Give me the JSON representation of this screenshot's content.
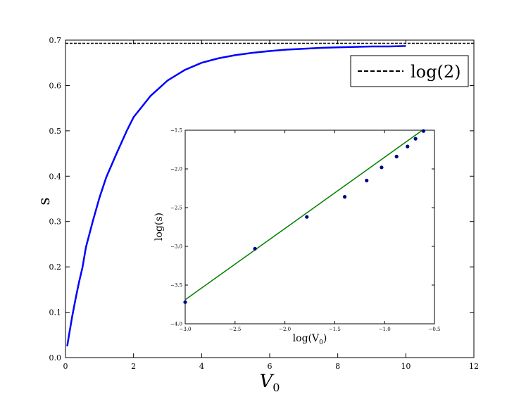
{
  "chart_data": [
    {
      "type": "line",
      "xlabel": "V",
      "xlabel_sub": "0",
      "ylabel": "s",
      "xlim": [
        0,
        12
      ],
      "ylim": [
        0.0,
        0.7
      ],
      "xticks": [
        "0",
        "2",
        "4",
        "6",
        "8",
        "10",
        "12"
      ],
      "yticks": [
        "0.0",
        "0.1",
        "0.2",
        "0.3",
        "0.4",
        "0.5",
        "0.6",
        "0.7"
      ],
      "grid": false,
      "legend_position": "top-right",
      "series": [
        {
          "kind": "curve",
          "color": "#0000ff",
          "x": [
            0.05,
            0.1,
            0.2,
            0.3,
            0.4,
            0.5,
            0.6,
            0.8,
            1.0,
            1.2,
            1.5,
            1.8,
            2.0,
            2.5,
            3.0,
            3.5,
            4.0,
            4.5,
            5.0,
            5.5,
            6.0,
            6.5,
            7.0,
            7.5,
            8.0,
            8.5,
            9.0,
            9.5,
            10.0
          ],
          "y": [
            0.025,
            0.048,
            0.092,
            0.131,
            0.167,
            0.199,
            0.243,
            0.3,
            0.353,
            0.398,
            0.45,
            0.5,
            0.53,
            0.577,
            0.611,
            0.634,
            0.65,
            0.66,
            0.667,
            0.672,
            0.676,
            0.679,
            0.681,
            0.683,
            0.684,
            0.685,
            0.686,
            0.686,
            0.687
          ]
        },
        {
          "name": "log(2)",
          "kind": "hline",
          "color": "#000000",
          "dash": "dashed",
          "y": 0.6931,
          "x": [
            0,
            12
          ]
        }
      ]
    },
    {
      "type": "scatter",
      "xlabel": "log(V",
      "xlabel_sub": "0",
      "xlabel_suffix": ")",
      "ylabel": "log(s)",
      "xlim": [
        -3.0,
        -0.5
      ],
      "ylim": [
        -4.0,
        -1.5
      ],
      "xticks": [
        "−3.0",
        "−2.5",
        "−2.0",
        "−1.5",
        "−1.0",
        "−0.5"
      ],
      "yticks": [
        "−1.5",
        "−2.0",
        "−2.5",
        "−3.0",
        "−3.5",
        "−4.0"
      ],
      "grid": false,
      "series": [
        {
          "kind": "points",
          "color": "#00008b",
          "x": [
            -3.0,
            -2.3,
            -1.78,
            -1.4,
            -1.18,
            -1.03,
            -0.88,
            -0.77,
            -0.69,
            -0.61
          ],
          "y": [
            -3.72,
            -3.03,
            -2.62,
            -2.36,
            -2.15,
            -1.98,
            -1.84,
            -1.71,
            -1.61,
            -1.51
          ]
        },
        {
          "kind": "fit-line",
          "color": "#008000",
          "x": [
            -3.0,
            -0.61
          ],
          "y": [
            -3.69,
            -1.49
          ]
        }
      ]
    }
  ]
}
